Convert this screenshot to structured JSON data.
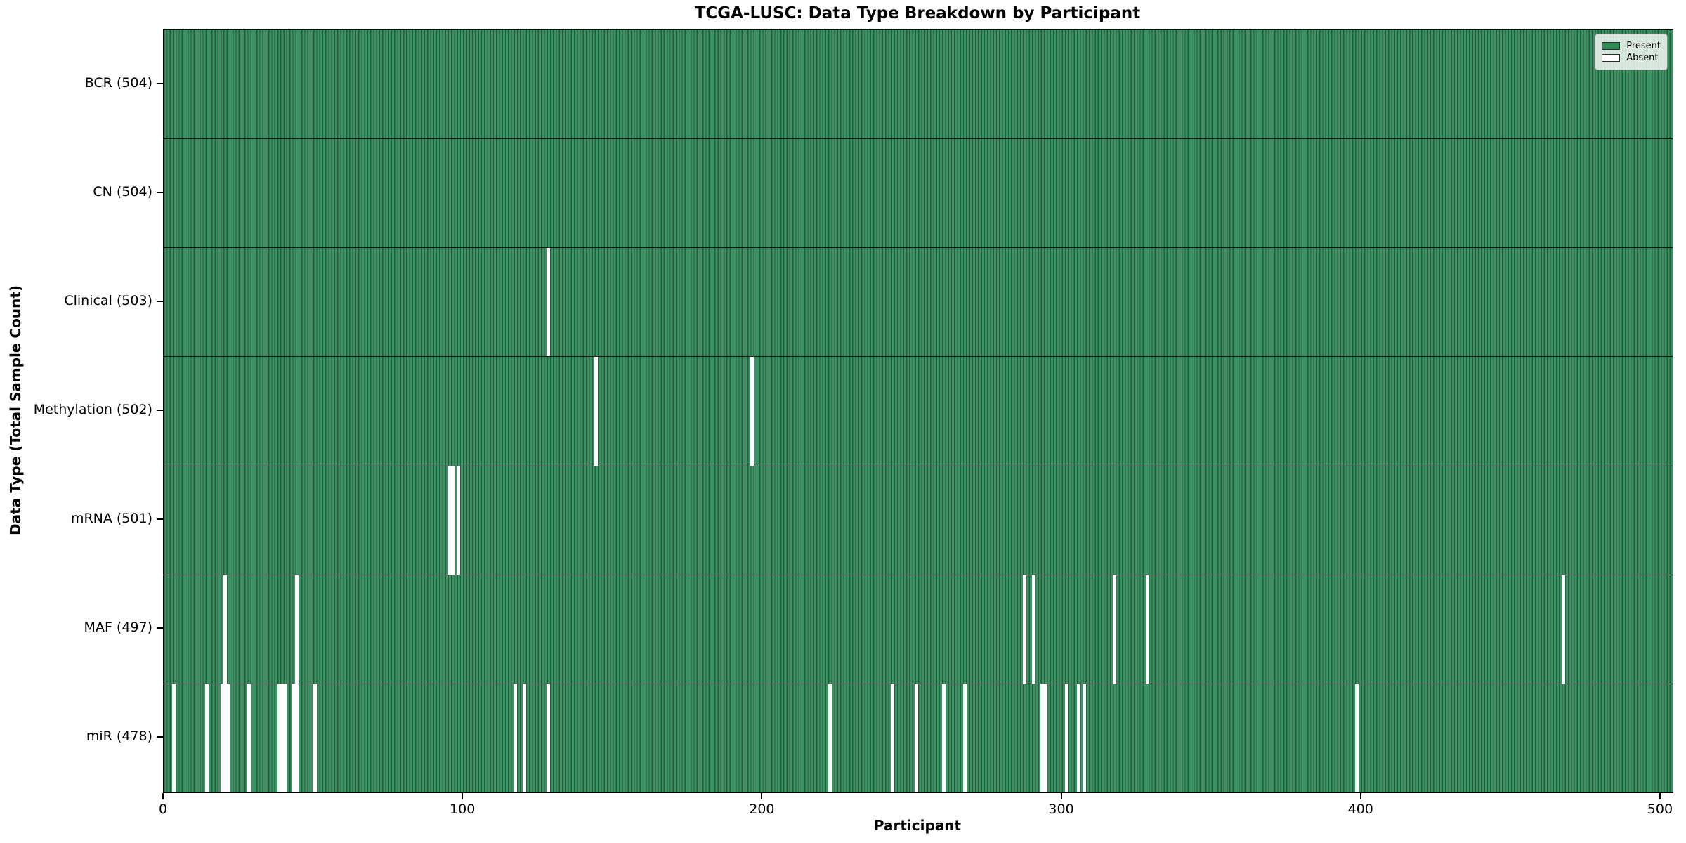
{
  "title": "TCGA-LUSC: Data Type Breakdown by Participant",
  "xlabel": "Participant",
  "ylabel": "Data Type (Total Sample Count)",
  "legend": {
    "present_label": "Present",
    "absent_label": "Absent"
  },
  "colors": {
    "present_fill": "#3e9164",
    "present_edge": "#235e3c",
    "legend_present": "#2e8b57",
    "absent": "#ffffff"
  },
  "chart_data": {
    "type": "heatmap",
    "title": "TCGA-LUSC: Data Type Breakdown by Participant",
    "xlabel": "Participant",
    "ylabel": "Data Type (Total Sample Count)",
    "xlim": [
      0,
      504
    ],
    "x_ticks": [
      0,
      100,
      200,
      300,
      400,
      500
    ],
    "total_participants": 504,
    "legend_entries": [
      "Present",
      "Absent"
    ],
    "legend_position": "upper right",
    "grid": "horizontal row separators only",
    "rows": [
      {
        "label": "BCR (504)",
        "data_type": "BCR",
        "present_count": 504,
        "absent_participants": []
      },
      {
        "label": "CN (504)",
        "data_type": "CN",
        "present_count": 504,
        "absent_participants": []
      },
      {
        "label": "Clinical (503)",
        "data_type": "Clinical",
        "present_count": 503,
        "absent_participants": [
          128
        ]
      },
      {
        "label": "Methylation (502)",
        "data_type": "Methylation",
        "present_count": 502,
        "absent_participants": [
          144,
          196
        ]
      },
      {
        "label": "mRNA (501)",
        "data_type": "mRNA",
        "present_count": 501,
        "absent_participants": [
          95,
          96,
          98
        ]
      },
      {
        "label": "MAF (497)",
        "data_type": "MAF",
        "present_count": 497,
        "absent_participants": [
          20,
          44,
          287,
          290,
          317,
          328,
          467
        ]
      },
      {
        "label": "miR (478)",
        "data_type": "miR",
        "present_count": 478,
        "absent_participants": [
          3,
          14,
          19,
          20,
          21,
          28,
          38,
          39,
          40,
          43,
          44,
          50,
          117,
          120,
          128,
          222,
          243,
          251,
          260,
          267,
          293,
          294,
          301,
          305,
          307,
          398
        ]
      }
    ]
  }
}
